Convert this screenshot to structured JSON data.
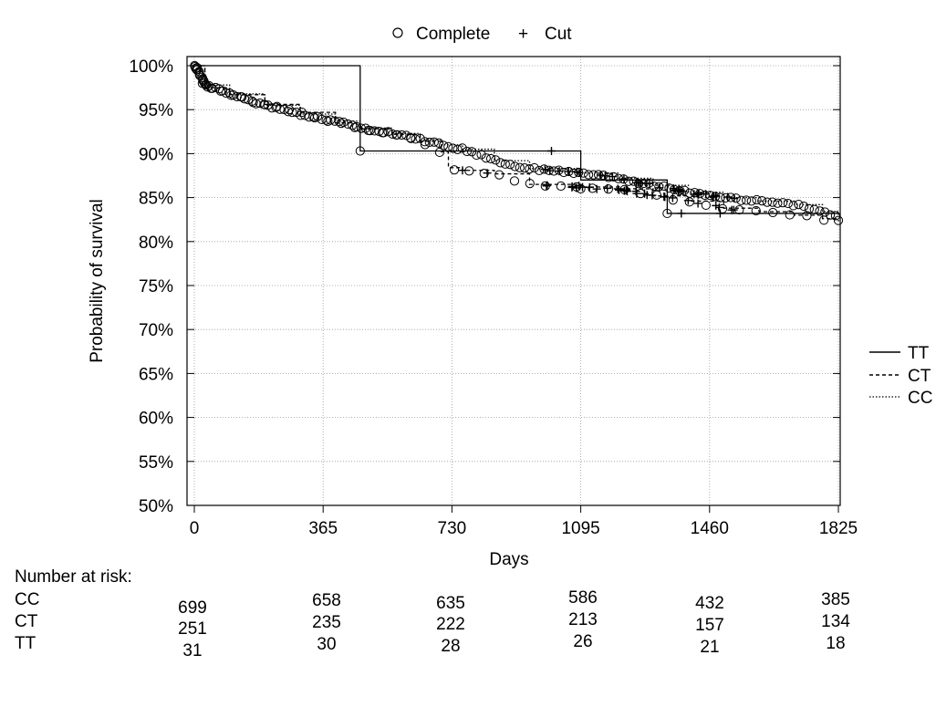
{
  "chart_data": {
    "type": "line",
    "subtype": "kaplan-meier",
    "title": "",
    "xlabel": "Days",
    "ylabel": "Probability of survival",
    "xlim": [
      0,
      1825
    ],
    "ylim": [
      50,
      100
    ],
    "x_ticks": [
      0,
      365,
      730,
      1095,
      1460,
      1825
    ],
    "y_ticks": [
      "50%",
      "55%",
      "60%",
      "65%",
      "70%",
      "75%",
      "80%",
      "85%",
      "90%",
      "95%",
      "100%"
    ],
    "y_tick_values": [
      50,
      55,
      60,
      65,
      70,
      75,
      80,
      85,
      90,
      95,
      100
    ],
    "grid": true,
    "marker_legend": {
      "placement": "top",
      "complete_symbol": "○",
      "complete_label": "Complete",
      "cut_symbol": "+",
      "cut_label": "Cut"
    },
    "legend": {
      "placement": "right",
      "entries": [
        "TT",
        "CT",
        "CC"
      ]
    },
    "series": [
      {
        "name": "TT",
        "line_style": "solid",
        "x": [
          0,
          470,
          470,
          1095,
          1095,
          1340,
          1340,
          1825
        ],
        "y": [
          100,
          96.8,
          90.3,
          90.3,
          87.0,
          87.0,
          83.2,
          83.2
        ]
      },
      {
        "name": "CT",
        "line_style": "dashed",
        "x": [
          0,
          30,
          100,
          200,
          300,
          400,
          470,
          560,
          640,
          700,
          720,
          760,
          850,
          950,
          1095,
          1200,
          1300,
          1400,
          1500,
          1600,
          1700,
          1780,
          1825
        ],
        "y": [
          100,
          97.5,
          96.7,
          95.6,
          94.7,
          93.5,
          92.8,
          92.2,
          91.4,
          90.2,
          88.4,
          88.1,
          87.7,
          86.5,
          86.2,
          86.0,
          85.2,
          84.6,
          83.8,
          83.4,
          83.0,
          82.6,
          82.3
        ]
      },
      {
        "name": "CC",
        "line_style": "dotted",
        "x": [
          0,
          30,
          100,
          200,
          300,
          400,
          470,
          560,
          640,
          700,
          760,
          850,
          950,
          1095,
          1200,
          1300,
          1400,
          1500,
          1600,
          1700,
          1780,
          1825
        ],
        "y": [
          100,
          97.8,
          96.8,
          95.5,
          94.5,
          93.7,
          92.9,
          92.3,
          91.6,
          91.0,
          90.5,
          89.2,
          88.3,
          87.8,
          87.2,
          86.4,
          85.6,
          85.0,
          84.6,
          84.2,
          83.4,
          82.9
        ]
      }
    ],
    "risk_table": {
      "title": "Number at risk:",
      "times": [
        0,
        365,
        730,
        1095,
        1460,
        1825
      ],
      "rows": [
        {
          "group": "CC",
          "values": [
            "699",
            "658",
            "635",
            "586",
            "432",
            "385"
          ]
        },
        {
          "group": "CT",
          "values": [
            "251",
            "235",
            "222",
            "213",
            "157",
            "134"
          ]
        },
        {
          "group": "TT",
          "values": [
            "31",
            "30",
            "28",
            "26",
            "21",
            "18"
          ]
        }
      ]
    }
  }
}
